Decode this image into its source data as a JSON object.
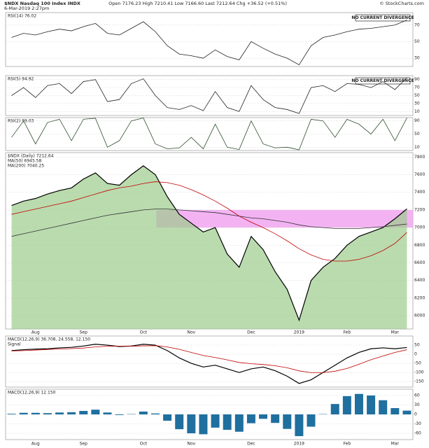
{
  "header": {
    "symbol": "$NDX Nasdaq 100 Index INDX",
    "date": "6-Mar-2019 2:27pm",
    "quote": "Open 7176.23 High 7210.41 Low 7166.60 Last 7212.64 Chg +36.52 (+0.51%)",
    "source": "© StockCharts.com"
  },
  "categories": [
    null,
    null,
    "Aug",
    null,
    null,
    null,
    "Sep",
    null,
    null,
    null,
    null,
    "Oct",
    null,
    null,
    null,
    "Nov",
    null,
    null,
    null,
    null,
    "Dec",
    null,
    null,
    null,
    "2019",
    null,
    null,
    null,
    "Feb",
    null,
    null,
    null,
    "Mar",
    null
  ],
  "chart_data": [
    {
      "type": "line",
      "label": "RSI(14) 76.02",
      "annotation": "NO CURRENT DIVERGENCE",
      "ylim": [
        20,
        85
      ],
      "yticks": [
        30,
        50,
        70
      ],
      "color": "#222",
      "values": [
        55,
        60,
        58,
        62,
        65,
        63,
        68,
        72,
        60,
        58,
        66,
        74,
        62,
        45,
        35,
        33,
        30,
        40,
        32,
        28,
        50,
        42,
        35,
        30,
        22,
        45,
        55,
        58,
        62,
        65,
        66,
        68,
        70,
        76
      ]
    },
    {
      "type": "line",
      "label": "RSI(5) 94.92",
      "annotation": "NO CURRENT DIVERGENCE",
      "ylim": [
        0,
        100
      ],
      "yticks": [
        10,
        30,
        50,
        70,
        90
      ],
      "color": "#222",
      "values": [
        50,
        70,
        45,
        75,
        80,
        55,
        85,
        90,
        35,
        40,
        80,
        92,
        50,
        20,
        15,
        25,
        12,
        60,
        20,
        10,
        75,
        40,
        20,
        15,
        5,
        70,
        75,
        60,
        80,
        78,
        70,
        85,
        65,
        95
      ]
    },
    {
      "type": "line",
      "label": "RSI(2) 99.03",
      "ylim": [
        0,
        100
      ],
      "yticks": [
        10,
        50,
        90
      ],
      "color": "#2f4f2f",
      "values": [
        40,
        90,
        20,
        85,
        95,
        30,
        95,
        98,
        10,
        30,
        90,
        99,
        20,
        5,
        8,
        40,
        5,
        80,
        10,
        3,
        90,
        20,
        8,
        10,
        2,
        95,
        90,
        40,
        95,
        80,
        50,
        95,
        30,
        99
      ]
    },
    {
      "type": "line",
      "label": "$NDX (Daily) 7212.64",
      "ylim": [
        5850,
        7850
      ],
      "yticks": [
        6000,
        6200,
        6400,
        6600,
        6800,
        7000,
        7200,
        7400,
        7600,
        7800
      ],
      "area": true,
      "band": [
        7000,
        7200
      ],
      "band_color": "#f0a0f0",
      "series": [
        {
          "name": "$NDX",
          "color": "#000",
          "values": [
            7250,
            7300,
            7330,
            7380,
            7420,
            7450,
            7550,
            7620,
            7500,
            7480,
            7600,
            7700,
            7600,
            7350,
            7150,
            7050,
            6950,
            7000,
            6700,
            6550,
            6900,
            6750,
            6500,
            6300,
            5950,
            6400,
            6550,
            6650,
            6800,
            6900,
            6950,
            7000,
            7100,
            7212
          ]
        },
        {
          "name": "MA(50) 6945.58",
          "color": "#c00000",
          "values": [
            7150,
            7180,
            7210,
            7240,
            7270,
            7300,
            7340,
            7380,
            7420,
            7450,
            7470,
            7500,
            7520,
            7510,
            7480,
            7430,
            7370,
            7300,
            7220,
            7130,
            7060,
            7000,
            6930,
            6850,
            6760,
            6690,
            6640,
            6620,
            6620,
            6640,
            6680,
            6740,
            6820,
            6945
          ]
        },
        {
          "name": "MA(200) 7040.25",
          "color": "#333",
          "values": [
            6900,
            6930,
            6960,
            6990,
            7020,
            7050,
            7080,
            7110,
            7140,
            7160,
            7180,
            7200,
            7210,
            7210,
            7200,
            7190,
            7180,
            7170,
            7150,
            7130,
            7110,
            7100,
            7080,
            7060,
            7030,
            7010,
            7000,
            6990,
            6990,
            6990,
            7000,
            7010,
            7025,
            7040
          ]
        }
      ]
    },
    {
      "type": "line",
      "label": "MACD(12,26,9) 36.708, 24.558, 12.150",
      "ylim": [
        -180,
        100
      ],
      "yticks": [
        -150,
        -100,
        -50,
        0,
        50
      ],
      "series": [
        {
          "name": "MACD",
          "color": "#000",
          "values": [
            20,
            25,
            28,
            30,
            35,
            38,
            45,
            55,
            50,
            42,
            45,
            55,
            50,
            20,
            -20,
            -50,
            -70,
            -60,
            -80,
            -100,
            -80,
            -70,
            -90,
            -120,
            -160,
            -140,
            -100,
            -60,
            -20,
            10,
            30,
            35,
            30,
            37
          ]
        },
        {
          "name": "Signal",
          "color": "#c00000",
          "values": [
            18,
            20,
            23,
            26,
            29,
            31,
            34,
            40,
            44,
            44,
            44,
            46,
            47,
            40,
            27,
            10,
            -7,
            -18,
            -31,
            -45,
            -52,
            -56,
            -63,
            -74,
            -91,
            -101,
            -101,
            -93,
            -78,
            -55,
            -30,
            -10,
            10,
            25
          ]
        }
      ]
    },
    {
      "type": "bar",
      "label": "MACD(12,26,9) 12.150",
      "ylim": [
        -80,
        80
      ],
      "yticks": [
        -60,
        -30,
        0,
        30,
        60
      ],
      "color": "#1f6f9f",
      "values": [
        2,
        5,
        5,
        4,
        6,
        7,
        11,
        15,
        6,
        -2,
        1,
        9,
        3,
        -20,
        -47,
        -60,
        -63,
        -42,
        -49,
        -55,
        -28,
        -14,
        -27,
        -46,
        -69,
        -39,
        1,
        33,
        58,
        65,
        60,
        45,
        20,
        12
      ]
    }
  ]
}
